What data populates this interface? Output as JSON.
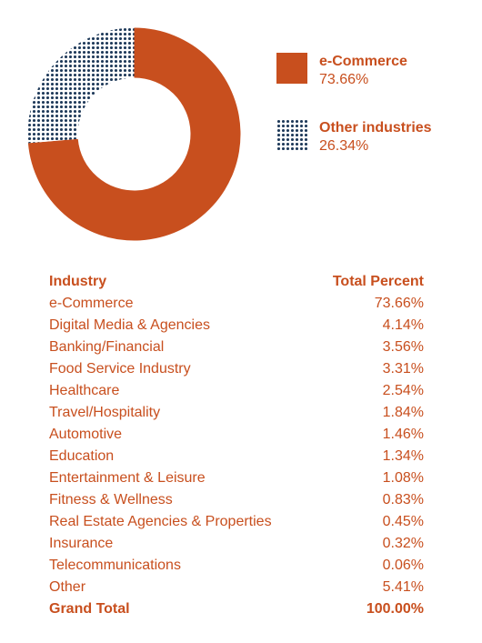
{
  "colors": {
    "accent": "#c84f1e",
    "secondary": "#1f3a5a"
  },
  "chart_data": {
    "type": "pie",
    "variant": "donut",
    "series": [
      {
        "name": "e-Commerce",
        "value": 73.66,
        "label": "73.66%",
        "color": "#c84f1e",
        "fill": "solid"
      },
      {
        "name": "Other industries",
        "value": 26.34,
        "label": "26.34%",
        "color": "#1f3a5a",
        "fill": "dotted"
      }
    ],
    "legend_position": "right"
  },
  "table": {
    "header": {
      "industry": "Industry",
      "percent": "Total Percent"
    },
    "rows": [
      {
        "industry": "e-Commerce",
        "percent": "73.66%"
      },
      {
        "industry": "Digital Media & Agencies",
        "percent": "4.14%"
      },
      {
        "industry": "Banking/Financial",
        "percent": "3.56%"
      },
      {
        "industry": "Food Service Industry",
        "percent": "3.31%"
      },
      {
        "industry": "Healthcare",
        "percent": "2.54%"
      },
      {
        "industry": "Travel/Hospitality",
        "percent": "1.84%"
      },
      {
        "industry": "Automotive",
        "percent": "1.46%"
      },
      {
        "industry": "Education",
        "percent": "1.34%"
      },
      {
        "industry": "Entertainment & Leisure",
        "percent": "1.08%"
      },
      {
        "industry": "Fitness & Wellness",
        "percent": "0.83%"
      },
      {
        "industry": "Real Estate Agencies & Properties",
        "percent": "0.45%"
      },
      {
        "industry": "Insurance",
        "percent": "0.32%"
      },
      {
        "industry": "Telecommunications",
        "percent": "0.06%"
      },
      {
        "industry": "Other",
        "percent": "5.41%"
      }
    ],
    "total": {
      "industry": "Grand Total",
      "percent": "100.00%"
    }
  }
}
